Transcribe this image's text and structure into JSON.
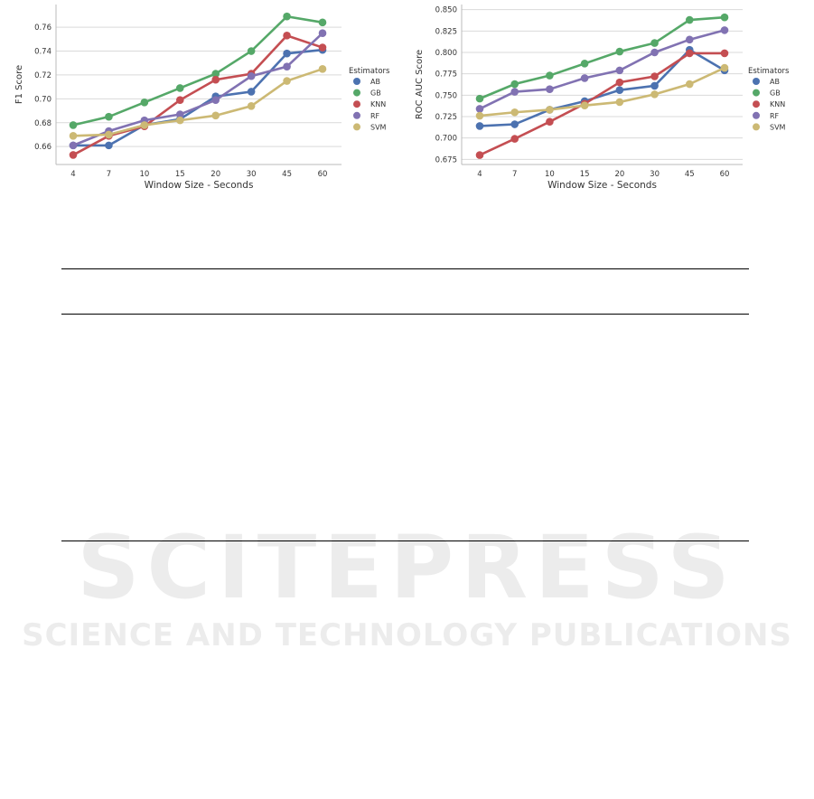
{
  "chart_data": [
    {
      "type": "line",
      "xlabel": "Window Size - Seconds",
      "ylabel": "F1 Score",
      "categories": [
        "4",
        "7",
        "10",
        "15",
        "20",
        "30",
        "45",
        "60"
      ],
      "yticks": [
        0.66,
        0.68,
        0.7,
        0.72,
        0.74,
        0.76
      ],
      "ytick_labels": [
        "0.66",
        "0.68",
        "0.70",
        "0.72",
        "0.74",
        "0.76"
      ],
      "ylim": [
        0.645,
        0.779
      ],
      "grid": "horizontal",
      "legend_title": "Estimators",
      "legend_placement": "right",
      "series": [
        {
          "name": "AB",
          "color": "#4c72b0",
          "values": [
            0.661,
            0.661,
            0.678,
            0.683,
            0.702,
            0.706,
            0.738,
            0.741
          ]
        },
        {
          "name": "GB",
          "color": "#55a868",
          "values": [
            0.678,
            0.685,
            0.697,
            0.709,
            0.721,
            0.74,
            0.769,
            0.764
          ]
        },
        {
          "name": "KNN",
          "color": "#c44e52",
          "values": [
            0.653,
            0.669,
            0.677,
            0.699,
            0.716,
            0.721,
            0.753,
            0.743
          ]
        },
        {
          "name": "RF",
          "color": "#8172b2",
          "values": [
            0.661,
            0.673,
            0.682,
            0.687,
            0.699,
            0.719,
            0.727,
            0.755
          ]
        },
        {
          "name": "SVM",
          "color": "#ccb974",
          "values": [
            0.669,
            0.67,
            0.678,
            0.682,
            0.686,
            0.694,
            0.715,
            0.725
          ]
        }
      ]
    },
    {
      "type": "line",
      "xlabel": "Window Size - Seconds",
      "ylabel": "ROC AUC Score",
      "categories": [
        "4",
        "7",
        "10",
        "15",
        "20",
        "30",
        "45",
        "60"
      ],
      "yticks": [
        0.675,
        0.7,
        0.725,
        0.75,
        0.775,
        0.8,
        0.825,
        0.85
      ],
      "ytick_labels": [
        "0.675",
        "0.700",
        "0.725",
        "0.750",
        "0.775",
        "0.800",
        "0.825",
        "0.850"
      ],
      "ylim": [
        0.669,
        0.856
      ],
      "grid": "horizontal",
      "legend_title": "Estimators",
      "legend_placement": "right",
      "series": [
        {
          "name": "AB",
          "color": "#4c72b0",
          "values": [
            0.714,
            0.716,
            0.733,
            0.743,
            0.756,
            0.761,
            0.803,
            0.779
          ]
        },
        {
          "name": "GB",
          "color": "#55a868",
          "values": [
            0.746,
            0.763,
            0.773,
            0.787,
            0.801,
            0.811,
            0.838,
            0.841
          ]
        },
        {
          "name": "KNN",
          "color": "#c44e52",
          "values": [
            0.68,
            0.699,
            0.719,
            0.74,
            0.765,
            0.772,
            0.799,
            0.799
          ]
        },
        {
          "name": "RF",
          "color": "#8172b2",
          "values": [
            0.734,
            0.754,
            0.757,
            0.77,
            0.779,
            0.8,
            0.815,
            0.826
          ]
        },
        {
          "name": "SVM",
          "color": "#ccb974",
          "values": [
            0.726,
            0.73,
            0.733,
            0.738,
            0.742,
            0.751,
            0.763,
            0.782
          ]
        }
      ]
    }
  ],
  "watermark": {
    "line1": "SCITEPRESS",
    "line2": "SCIENCE AND TECHNOLOGY PUBLICATIONS"
  }
}
